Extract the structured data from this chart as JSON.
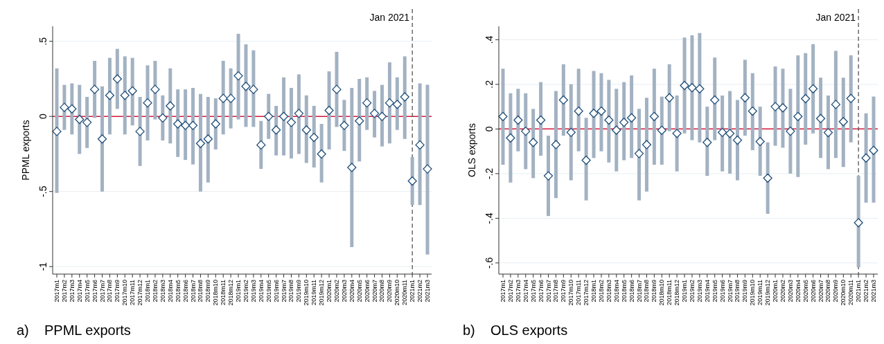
{
  "chart_data": [
    {
      "type": "scatter",
      "ylabel": "PPML exports",
      "categories": [
        "2017m1",
        "2017m2",
        "2017m3",
        "2017m4",
        "2017m5",
        "2017m6",
        "2017m7",
        "2017m8",
        "2017m9",
        "2017m10",
        "2017m11",
        "2017m12",
        "2018m1",
        "2018m2",
        "2018m3",
        "2018m4",
        "2018m5",
        "2018m6",
        "2018m7",
        "2018m8",
        "2018m9",
        "2018m10",
        "2018m11",
        "2018m12",
        "2019m1",
        "2019m2",
        "2019m3",
        "2019m4",
        "2019m5",
        "2019m6",
        "2019m7",
        "2019m8",
        "2019m9",
        "2019m10",
        "2019m11",
        "2019m12",
        "2020m1",
        "2020m2",
        "2020m3",
        "2020m4",
        "2020m5",
        "2020m6",
        "2020m7",
        "2020m8",
        "2020m9",
        "2020m10",
        "2020m11",
        "2021m1",
        "2021m2",
        "2021m3"
      ],
      "series": [
        {
          "color": "#1f4e79",
          "values": [
            -0.1,
            0.06,
            0.05,
            -0.02,
            -0.04,
            0.18,
            -0.15,
            0.14,
            0.25,
            0.14,
            0.17,
            -0.1,
            0.09,
            0.18,
            -0.01,
            0.07,
            -0.05,
            -0.06,
            -0.06,
            -0.18,
            -0.15,
            -0.05,
            0.12,
            0.12,
            0.27,
            0.2,
            0.18,
            -0.19,
            0.0,
            -0.09,
            0.0,
            -0.04,
            0.02,
            -0.09,
            -0.14,
            -0.25,
            0.04,
            0.18,
            -0.06,
            -0.34,
            -0.03,
            0.09,
            0.02,
            0.0,
            0.09,
            0.08,
            0.13,
            -0.43,
            -0.19,
            -0.35
          ],
          "errors": [
            [
              -0.51,
              0.32
            ],
            [
              -0.09,
              0.21
            ],
            [
              -0.12,
              0.22
            ],
            [
              -0.25,
              0.21
            ],
            [
              -0.21,
              0.13
            ],
            [
              -0.01,
              0.37
            ],
            [
              -0.5,
              0.2
            ],
            [
              -0.12,
              0.39
            ],
            [
              0.05,
              0.45
            ],
            [
              -0.12,
              0.4
            ],
            [
              -0.06,
              0.39
            ],
            [
              -0.33,
              0.13
            ],
            [
              -0.16,
              0.34
            ],
            [
              -0.02,
              0.37
            ],
            [
              -0.16,
              0.14
            ],
            [
              -0.18,
              0.32
            ],
            [
              -0.27,
              0.18
            ],
            [
              -0.29,
              0.18
            ],
            [
              -0.32,
              0.19
            ],
            [
              -0.5,
              0.15
            ],
            [
              -0.44,
              0.13
            ],
            [
              -0.22,
              0.12
            ],
            [
              -0.12,
              0.37
            ],
            [
              -0.08,
              0.32
            ],
            [
              -0.02,
              0.55
            ],
            [
              -0.07,
              0.48
            ],
            [
              -0.07,
              0.44
            ],
            [
              -0.35,
              -0.03
            ],
            [
              -0.15,
              0.15
            ],
            [
              -0.26,
              0.07
            ],
            [
              -0.26,
              0.26
            ],
            [
              -0.28,
              0.19
            ],
            [
              -0.25,
              0.28
            ],
            [
              -0.31,
              0.14
            ],
            [
              -0.34,
              0.07
            ],
            [
              -0.44,
              -0.05
            ],
            [
              -0.22,
              0.3
            ],
            [
              -0.07,
              0.43
            ],
            [
              -0.23,
              0.11
            ],
            [
              -0.87,
              0.19
            ],
            [
              -0.3,
              0.25
            ],
            [
              -0.09,
              0.26
            ],
            [
              -0.14,
              0.17
            ],
            [
              -0.2,
              0.21
            ],
            [
              -0.18,
              0.36
            ],
            [
              -0.09,
              0.26
            ],
            [
              -0.15,
              0.4
            ],
            [
              -0.59,
              -0.27
            ],
            [
              -0.59,
              0.22
            ],
            [
              -0.92,
              0.21
            ]
          ]
        }
      ],
      "ylim": [
        -1.05,
        0.6
      ],
      "yticks": [
        {
          "value": 0.5,
          "label": ".5"
        },
        {
          "value": 0,
          "label": "0"
        },
        {
          "value": -0.5,
          "label": "-.5"
        },
        {
          "value": -1,
          "label": "-1"
        }
      ],
      "grid": "y",
      "marker": "diamond",
      "ref_lines": [
        {
          "axis": "y",
          "value": 0,
          "color": "#d6173a"
        },
        {
          "axis": "x",
          "value": "2021m1",
          "label": "Jan 2021",
          "color": "#555555",
          "line_style": "dashed"
        }
      ],
      "annotations": [
        "a)    PPML exports"
      ]
    },
    {
      "type": "scatter",
      "ylabel": "OLS exports",
      "categories": [
        "2017m1",
        "2017m2",
        "2017m3",
        "2017m4",
        "2017m5",
        "2017m6",
        "2017m7",
        "2017m8",
        "2017m9",
        "2017m10",
        "2017m11",
        "2017m12",
        "2018m1",
        "2018m2",
        "2018m3",
        "2018m4",
        "2018m5",
        "2018m6",
        "2018m7",
        "2018m8",
        "2018m9",
        "2018m10",
        "2018m11",
        "2018m12",
        "2019m1",
        "2019m2",
        "2019m3",
        "2019m4",
        "2019m5",
        "2019m6",
        "2019m7",
        "2019m8",
        "2019m9",
        "2019m10",
        "2019m11",
        "2019m12",
        "2020m1",
        "2020m2",
        "2020m3",
        "2020m4",
        "2020m5",
        "2020m6",
        "2020m7",
        "2020m8",
        "2020m9",
        "2020m10",
        "2020m11",
        "2021m1",
        "2021m2",
        "2021m3"
      ],
      "series": [
        {
          "color": "#1f4e79",
          "values": [
            0.056,
            -0.04,
            0.04,
            -0.01,
            -0.06,
            0.04,
            -0.21,
            -0.07,
            0.13,
            -0.015,
            0.08,
            -0.14,
            0.07,
            0.08,
            0.04,
            -0.005,
            0.03,
            0.05,
            -0.11,
            -0.07,
            0.056,
            -0.006,
            0.14,
            -0.02,
            0.195,
            0.185,
            0.18,
            -0.06,
            0.13,
            -0.015,
            -0.02,
            -0.05,
            0.14,
            0.08,
            -0.056,
            -0.22,
            0.1,
            0.095,
            -0.01,
            0.056,
            0.136,
            0.18,
            0.047,
            -0.016,
            0.11,
            0.033,
            0.137,
            -0.42,
            -0.13,
            -0.096
          ],
          "errors": [
            [
              -0.16,
              0.27
            ],
            [
              -0.24,
              0.16
            ],
            [
              -0.1,
              0.18
            ],
            [
              -0.18,
              0.16
            ],
            [
              -0.22,
              0.09
            ],
            [
              -0.12,
              0.21
            ],
            [
              -0.39,
              -0.03
            ],
            [
              -0.31,
              0.17
            ],
            [
              -0.03,
              0.29
            ],
            [
              -0.23,
              0.2
            ],
            [
              -0.1,
              0.27
            ],
            [
              -0.32,
              0.05
            ],
            [
              -0.13,
              0.26
            ],
            [
              -0.1,
              0.25
            ],
            [
              -0.15,
              0.22
            ],
            [
              -0.19,
              0.18
            ],
            [
              -0.14,
              0.21
            ],
            [
              -0.13,
              0.24
            ],
            [
              -0.32,
              0.09
            ],
            [
              -0.28,
              0.14
            ],
            [
              -0.16,
              0.27
            ],
            [
              -0.16,
              0.145
            ],
            [
              -0.01,
              0.29
            ],
            [
              -0.19,
              0.15
            ],
            [
              -0.02,
              0.41
            ],
            [
              -0.05,
              0.42
            ],
            [
              -0.06,
              0.43
            ],
            [
              -0.21,
              0.1
            ],
            [
              -0.05,
              0.32
            ],
            [
              -0.19,
              0.15
            ],
            [
              -0.2,
              0.17
            ],
            [
              -0.23,
              0.13
            ],
            [
              -0.03,
              0.31
            ],
            [
              -0.095,
              0.25
            ],
            [
              -0.21,
              0.1
            ],
            [
              -0.38,
              -0.06
            ],
            [
              -0.075,
              0.28
            ],
            [
              -0.084,
              0.27
            ],
            [
              -0.2,
              0.18
            ],
            [
              -0.215,
              0.33
            ],
            [
              -0.07,
              0.34
            ],
            [
              -0.02,
              0.38
            ],
            [
              -0.13,
              0.23
            ],
            [
              -0.18,
              0.15
            ],
            [
              -0.13,
              0.35
            ],
            [
              -0.17,
              0.23
            ],
            [
              -0.06,
              0.33
            ],
            [
              -0.62,
              -0.21
            ],
            [
              -0.33,
              0.07
            ],
            [
              -0.33,
              0.145
            ]
          ]
        }
      ],
      "ylim": [
        -0.65,
        0.46
      ],
      "yticks": [
        {
          "value": 0.4,
          "label": ".4"
        },
        {
          "value": 0.2,
          "label": ".2"
        },
        {
          "value": 0,
          "label": "0"
        },
        {
          "value": -0.2,
          "label": "-.2"
        },
        {
          "value": -0.4,
          "label": "-.4"
        },
        {
          "value": -0.6,
          "label": "-.6"
        }
      ],
      "grid": "y",
      "marker": "diamond",
      "ref_lines": [
        {
          "axis": "y",
          "value": 0,
          "color": "#d6173a"
        },
        {
          "axis": "x",
          "value": "2021m1",
          "label": "Jan 2021",
          "color": "#555555",
          "line_style": "dashed"
        }
      ],
      "annotations": [
        "b)    OLS exports"
      ]
    }
  ]
}
